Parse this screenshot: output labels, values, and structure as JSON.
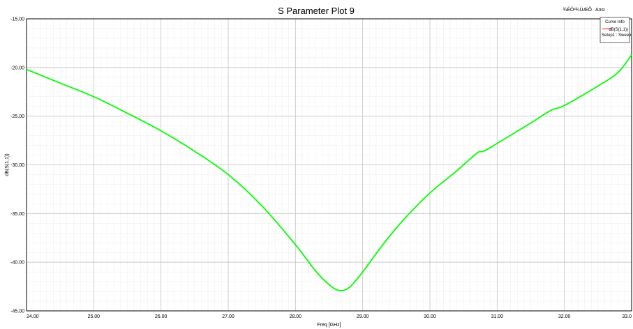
{
  "chart_data": {
    "type": "line",
    "title": "S Parameter Plot 9",
    "xlabel": "Freq [GHz]",
    "ylabel": "dB(S(1,1))",
    "xlim": [
      24.0,
      33.0
    ],
    "ylim": [
      -45.0,
      -15.0
    ],
    "x_ticks": [
      "24.00",
      "25.00",
      "26.00",
      "27.00",
      "28.00",
      "29.00",
      "30.00",
      "31.00",
      "32.00",
      "33.0"
    ],
    "y_ticks": [
      "-15.00",
      "-20.00",
      "-25.00",
      "-30.00",
      "-35.00",
      "-40.00",
      "-45.00"
    ],
    "grid": true,
    "corner_text_left": "¾ÉÔ²¾ÙÆÕ",
    "corner_text_right": "Ansı",
    "legend": {
      "title": "Curve Info",
      "placement": "top-right",
      "entries": [
        {
          "label": "dB(S(1,1))",
          "sub": "Setup1 : Sweep",
          "color": "#ff0000"
        }
      ]
    },
    "series": [
      {
        "name": "dB(S(1,1))",
        "color": "#00ff00",
        "x": [
          24.0,
          24.5,
          25.0,
          25.5,
          26.0,
          26.5,
          27.0,
          27.5,
          28.0,
          28.3,
          28.5,
          28.65,
          28.8,
          29.0,
          29.3,
          29.6,
          30.0,
          30.4,
          30.7,
          30.8,
          31.0,
          31.5,
          31.8,
          32.0,
          32.5,
          32.8,
          33.0
        ],
        "y": [
          -20.2,
          -21.6,
          -23.0,
          -24.7,
          -26.5,
          -28.6,
          -31.0,
          -34.2,
          -38.2,
          -40.9,
          -42.3,
          -42.9,
          -42.6,
          -41.0,
          -38.2,
          -35.7,
          -32.9,
          -30.6,
          -28.8,
          -28.6,
          -27.8,
          -25.7,
          -24.4,
          -23.9,
          -21.9,
          -20.5,
          -18.7
        ]
      }
    ]
  }
}
